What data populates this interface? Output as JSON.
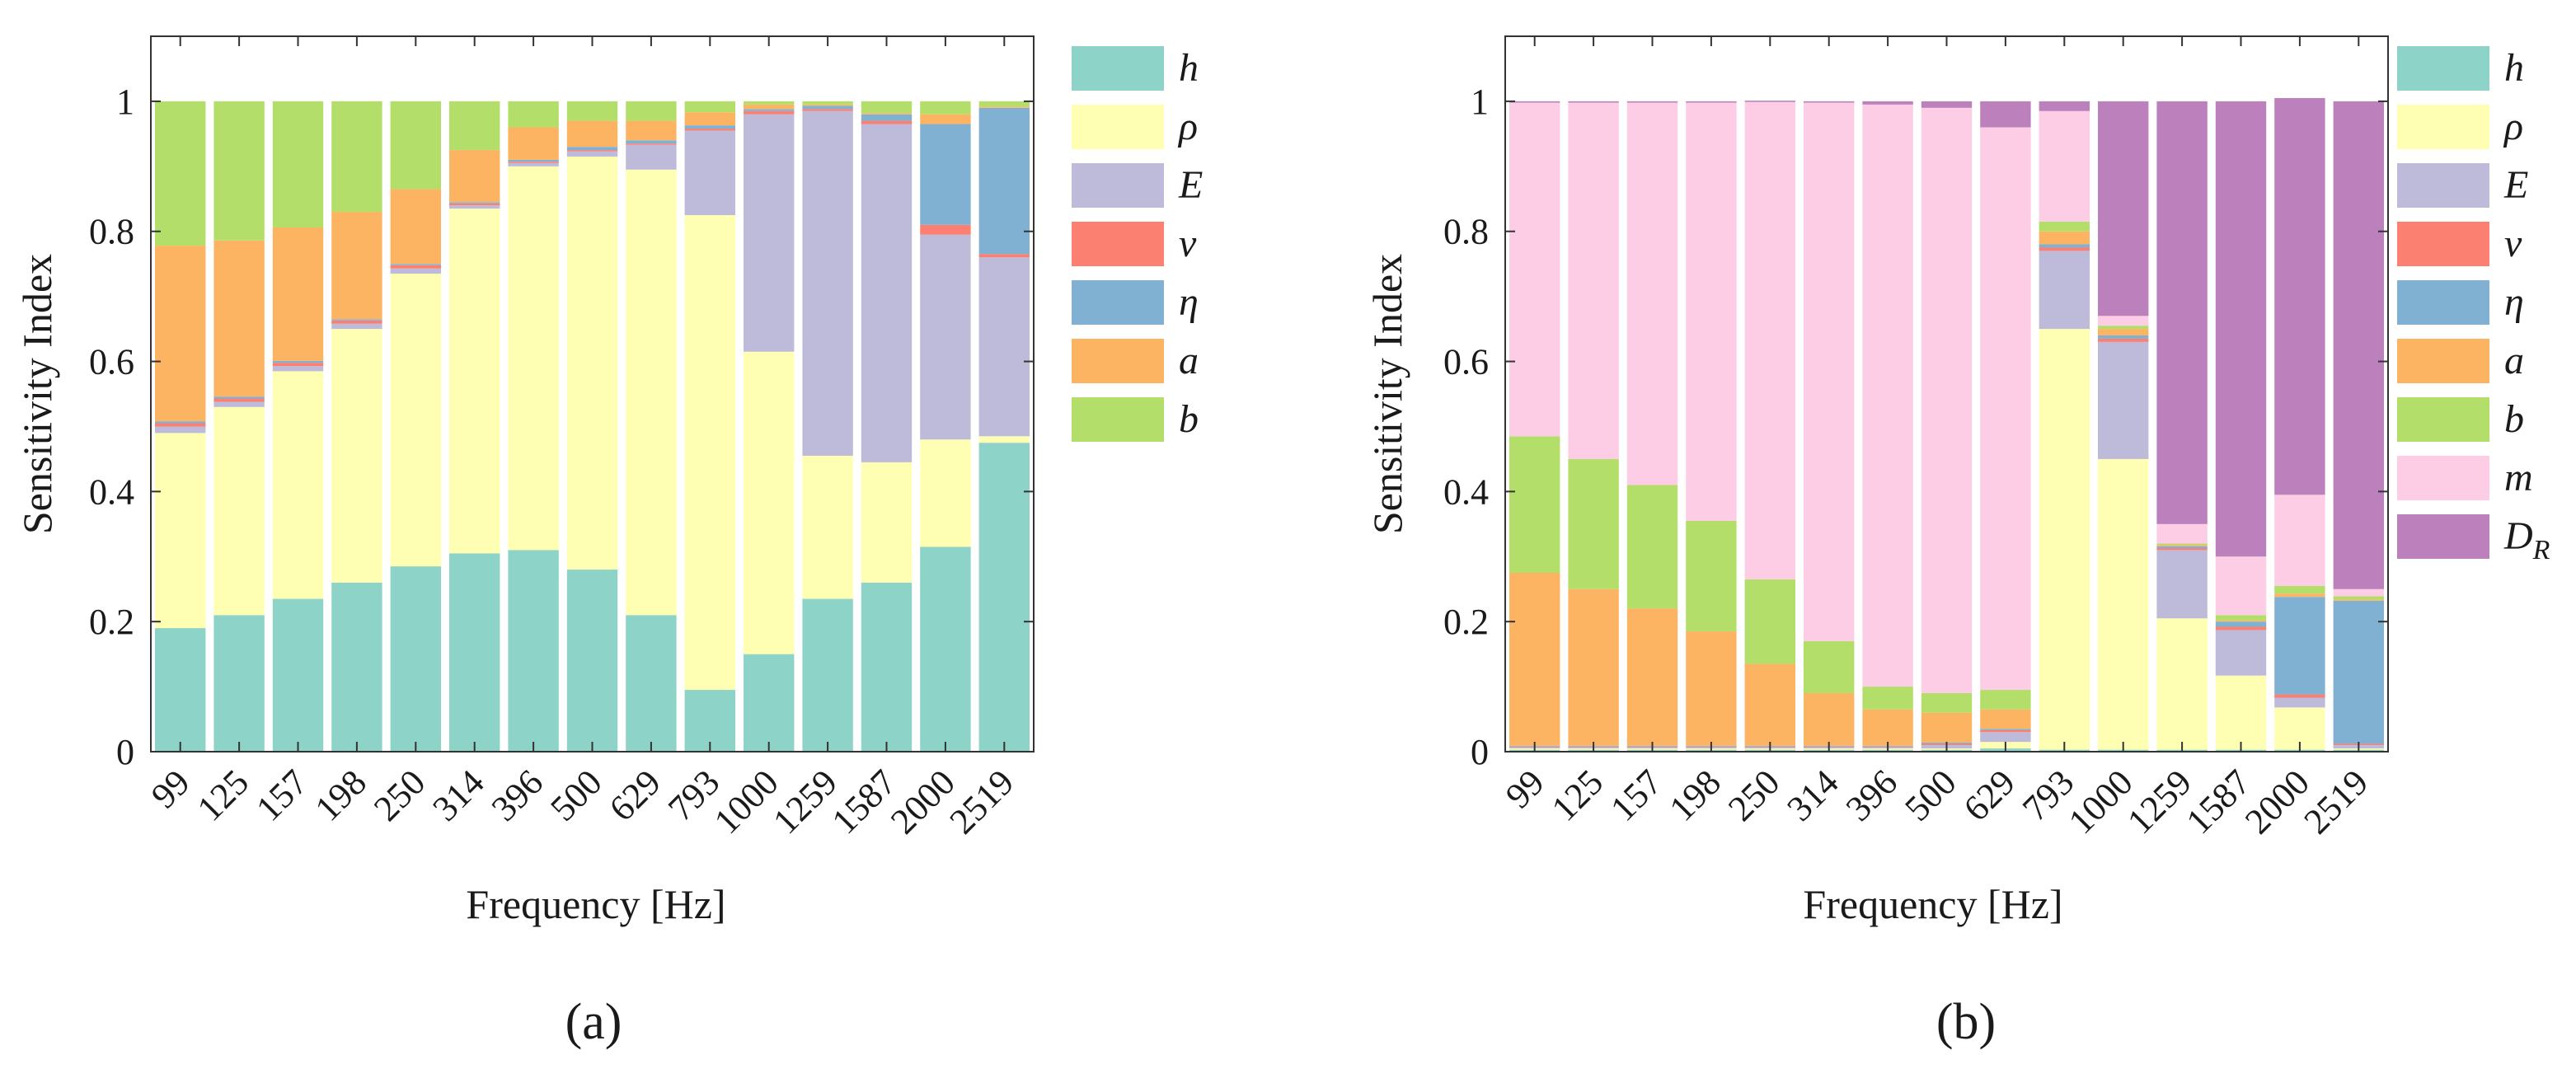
{
  "palette": {
    "h": "#8dd3c7",
    "rho": "#ffffb3",
    "E": "#bebada",
    "nu": "#fb8072",
    "eta": "#80b1d3",
    "a": "#fdb462",
    "b": "#b3de69",
    "m": "#fccde5",
    "DR": "#bc80bd"
  },
  "chart_data": [
    {
      "type": "bar",
      "stacked": true,
      "panel_label": "(a)",
      "xlabel": "Frequency [Hz]",
      "ylabel": "Sensitivity Index",
      "ylim": [
        0,
        1.1
      ],
      "yticks": [
        0,
        0.2,
        0.4,
        0.6,
        0.8,
        1
      ],
      "ytick_labels": [
        "0",
        "0.2",
        "0.4",
        "0.6",
        "0.8",
        "1"
      ],
      "categories": [
        "99",
        "125",
        "157",
        "198",
        "250",
        "314",
        "396",
        "500",
        "629",
        "793",
        "1000",
        "1259",
        "1587",
        "2000",
        "2519"
      ],
      "legend_position": "right",
      "series": [
        {
          "key": "h",
          "name": "h",
          "values": [
            0.19,
            0.21,
            0.235,
            0.26,
            0.285,
            0.305,
            0.31,
            0.28,
            0.21,
            0.095,
            0.15,
            0.235,
            0.26,
            0.315,
            0.475
          ]
        },
        {
          "key": "rho",
          "name": "ρ",
          "values": [
            0.3,
            0.32,
            0.35,
            0.39,
            0.45,
            0.53,
            0.59,
            0.635,
            0.685,
            0.73,
            0.465,
            0.22,
            0.185,
            0.165,
            0.01
          ]
        },
        {
          "key": "E",
          "name": "E",
          "values": [
            0.01,
            0.008,
            0.008,
            0.008,
            0.008,
            0.005,
            0.005,
            0.008,
            0.038,
            0.13,
            0.365,
            0.53,
            0.52,
            0.315,
            0.275
          ]
        },
        {
          "key": "nu",
          "name": "ν",
          "values": [
            0.005,
            0.005,
            0.005,
            0.005,
            0.005,
            0.003,
            0.002,
            0.002,
            0.002,
            0.003,
            0.005,
            0.003,
            0.005,
            0.015,
            0.005
          ]
        },
        {
          "key": "eta",
          "name": "η",
          "values": [
            0.003,
            0.003,
            0.003,
            0.002,
            0.002,
            0.002,
            0.003,
            0.005,
            0.005,
            0.005,
            0.003,
            0.005,
            0.01,
            0.155,
            0.225
          ]
        },
        {
          "key": "a",
          "name": "a",
          "values": [
            0.27,
            0.24,
            0.205,
            0.165,
            0.115,
            0.08,
            0.05,
            0.04,
            0.03,
            0.02,
            0.007,
            0.002,
            0.002,
            0.015,
            0.002
          ]
        },
        {
          "key": "b",
          "name": "b",
          "values": [
            0.222,
            0.214,
            0.194,
            0.17,
            0.135,
            0.075,
            0.04,
            0.03,
            0.03,
            0.017,
            0.005,
            0.005,
            0.018,
            0.02,
            0.008
          ]
        }
      ]
    },
    {
      "type": "bar",
      "stacked": true,
      "panel_label": "(b)",
      "xlabel": "Frequency [Hz]",
      "ylabel": "Sensitivity Index",
      "ylim": [
        0,
        1.1
      ],
      "yticks": [
        0,
        0.2,
        0.4,
        0.6,
        0.8,
        1
      ],
      "ytick_labels": [
        "0",
        "0.2",
        "0.4",
        "0.6",
        "0.8",
        "1"
      ],
      "categories": [
        "99",
        "125",
        "157",
        "198",
        "250",
        "314",
        "396",
        "500",
        "629",
        "793",
        "1000",
        "1259",
        "1587",
        "2000",
        "2519"
      ],
      "legend_position": "right",
      "series": [
        {
          "key": "h",
          "name": "h",
          "values": [
            0.003,
            0.003,
            0.003,
            0.003,
            0.003,
            0.003,
            0.003,
            0.003,
            0.005,
            0.003,
            0.003,
            0.003,
            0.003,
            0.003,
            0.003
          ]
        },
        {
          "key": "rho",
          "name": "ρ",
          "values": [
            0.002,
            0.002,
            0.002,
            0.002,
            0.002,
            0.002,
            0.002,
            0.002,
            0.01,
            0.647,
            0.447,
            0.202,
            0.114,
            0.065,
            0.002
          ]
        },
        {
          "key": "E",
          "name": "E",
          "values": [
            0.002,
            0.002,
            0.002,
            0.002,
            0.002,
            0.002,
            0.002,
            0.005,
            0.015,
            0.12,
            0.18,
            0.105,
            0.07,
            0.015,
            0.005
          ]
        },
        {
          "key": "nu",
          "name": "ν",
          "values": [
            0.001,
            0.001,
            0.001,
            0.001,
            0.001,
            0.001,
            0.001,
            0.002,
            0.003,
            0.005,
            0.005,
            0.003,
            0.005,
            0.005,
            0.002
          ]
        },
        {
          "key": "eta",
          "name": "η",
          "values": [
            0.001,
            0.001,
            0.001,
            0.001,
            0.001,
            0.001,
            0.001,
            0.002,
            0.002,
            0.005,
            0.005,
            0.003,
            0.008,
            0.15,
            0.22
          ]
        },
        {
          "key": "a",
          "name": "a",
          "values": [
            0.266,
            0.241,
            0.211,
            0.176,
            0.126,
            0.081,
            0.056,
            0.046,
            0.03,
            0.02,
            0.01,
            0.002,
            0.002,
            0.005,
            0.002
          ]
        },
        {
          "key": "b",
          "name": "b",
          "values": [
            0.21,
            0.2,
            0.19,
            0.17,
            0.13,
            0.08,
            0.035,
            0.03,
            0.03,
            0.015,
            0.005,
            0.002,
            0.008,
            0.012,
            0.005
          ]
        },
        {
          "key": "m",
          "name": "m",
          "values": [
            0.513,
            0.548,
            0.588,
            0.643,
            0.734,
            0.828,
            0.895,
            0.9,
            0.865,
            0.17,
            0.015,
            0.03,
            0.09,
            0.14,
            0.011
          ]
        },
        {
          "key": "DR",
          "name": "D_R",
          "values": [
            0.002,
            0.002,
            0.002,
            0.002,
            0.002,
            0.002,
            0.005,
            0.01,
            0.04,
            0.015,
            0.33,
            0.65,
            0.7,
            0.61,
            0.75
          ]
        }
      ]
    }
  ]
}
